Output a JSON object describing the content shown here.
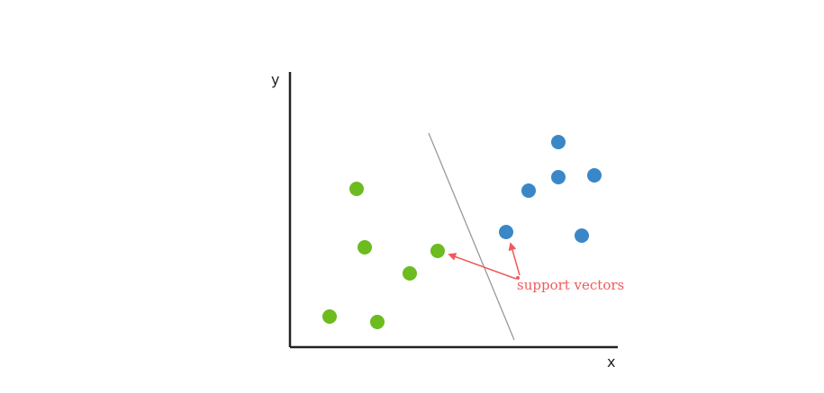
{
  "axes": {
    "x_label": "x",
    "y_label": "y"
  },
  "annotation": {
    "text": "support vectors",
    "color": "#ef5a5a"
  },
  "colors": {
    "class_green": "#6cbb1f",
    "class_blue": "#3a87c8",
    "axis": "#222222",
    "hyperplane": "#999999"
  }
}
